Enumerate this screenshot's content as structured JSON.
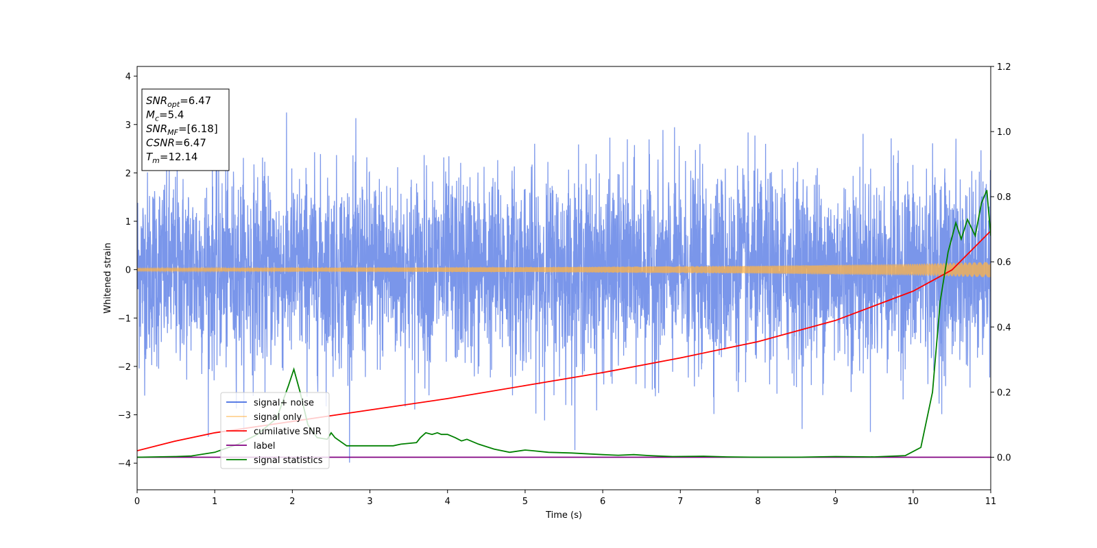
{
  "chart_data": {
    "type": "line",
    "xlabel": "Time (s)",
    "ylabel": "Whitened strain",
    "xlim": [
      0,
      11
    ],
    "ylim": [
      -4.55,
      4.2
    ],
    "y2lim": [
      -0.1,
      1.2
    ],
    "xticks": [
      0,
      1,
      2,
      3,
      4,
      5,
      6,
      7,
      8,
      9,
      10,
      11
    ],
    "yticks": [
      -4,
      -3,
      -2,
      -1,
      0,
      1,
      2,
      3,
      4
    ],
    "y2ticks": [
      0.0,
      0.2,
      0.4,
      0.6,
      0.8,
      1.0,
      1.2
    ],
    "xtick_labels": [
      "0",
      "1",
      "2",
      "3",
      "4",
      "5",
      "6",
      "7",
      "8",
      "9",
      "10",
      "11"
    ],
    "ytick_labels": [
      "−4",
      "−3",
      "−2",
      "−1",
      "0",
      "1",
      "2",
      "3",
      "4"
    ],
    "y2tick_labels": [
      "0.0",
      "0.2",
      "0.4",
      "0.6",
      "0.8",
      "1.0",
      "1.2"
    ],
    "grid": false,
    "legend_position": "lower-left",
    "info_box": {
      "lines": [
        {
          "base": "SNR",
          "sub": "opt",
          "value": "=6.47"
        },
        {
          "base": "M",
          "sub": "c",
          "value": "=5.4"
        },
        {
          "base": "SNR",
          "sub": "MF",
          "value": "=[6.18]"
        },
        {
          "base": "CSNR",
          "sub": "",
          "value": "=6.47"
        },
        {
          "base": "T",
          "sub": "m",
          "value": "=12.14"
        }
      ]
    },
    "series": [
      {
        "name": "signal+ noise",
        "color": "#4169e1",
        "axis": "left",
        "style": "noise",
        "typical_amplitude": 1.6,
        "peak_max": 3.5,
        "peak_min": -4.15
      },
      {
        "name": "signal only",
        "color": "#ffb347",
        "axis": "left",
        "style": "envelope",
        "envelope_x": [
          0,
          5,
          8,
          10,
          11
        ],
        "envelope_y": [
          0.03,
          0.05,
          0.08,
          0.12,
          0.16
        ]
      },
      {
        "name": "cumilative SNR",
        "color": "#ff0000",
        "axis": "right",
        "x": [
          0,
          0.5,
          1,
          2,
          3,
          4,
          5,
          6,
          7,
          8,
          9,
          10,
          10.5,
          11
        ],
        "y": [
          0.02,
          0.05,
          0.075,
          0.11,
          0.145,
          0.18,
          0.22,
          0.26,
          0.305,
          0.355,
          0.42,
          0.51,
          0.575,
          0.695
        ]
      },
      {
        "name": "label",
        "color": "#800080",
        "axis": "right",
        "x": [
          0,
          11
        ],
        "y": [
          0.0,
          0.0
        ]
      },
      {
        "name": "signal statistics",
        "color": "#008000",
        "axis": "right",
        "x": [
          0,
          0.5,
          0.7,
          1.0,
          1.3,
          1.55,
          1.8,
          1.95,
          2.02,
          2.1,
          2.2,
          2.32,
          2.45,
          2.5,
          2.55,
          2.7,
          3.0,
          3.3,
          3.4,
          3.6,
          3.65,
          3.72,
          3.8,
          3.87,
          3.92,
          4.0,
          4.1,
          4.18,
          4.25,
          4.4,
          4.6,
          4.8,
          5.0,
          5.1,
          5.3,
          5.6,
          6.0,
          6.2,
          6.4,
          6.6,
          6.9,
          7.3,
          7.6,
          8.0,
          8.5,
          9.0,
          9.5,
          9.9,
          10.1,
          10.25,
          10.35,
          10.45,
          10.55,
          10.62,
          10.7,
          10.8,
          10.88,
          10.95,
          11.0
        ],
        "y": [
          0.0,
          0.002,
          0.004,
          0.015,
          0.04,
          0.07,
          0.12,
          0.22,
          0.27,
          0.2,
          0.1,
          0.06,
          0.055,
          0.075,
          0.06,
          0.035,
          0.035,
          0.035,
          0.04,
          0.045,
          0.06,
          0.075,
          0.07,
          0.075,
          0.07,
          0.07,
          0.06,
          0.05,
          0.055,
          0.04,
          0.025,
          0.015,
          0.022,
          0.02,
          0.015,
          0.013,
          0.008,
          0.006,
          0.008,
          0.005,
          0.002,
          0.003,
          0.001,
          0.0,
          0.0,
          0.002,
          0.001,
          0.005,
          0.03,
          0.2,
          0.48,
          0.63,
          0.72,
          0.67,
          0.73,
          0.68,
          0.78,
          0.82,
          0.68
        ]
      }
    ]
  }
}
